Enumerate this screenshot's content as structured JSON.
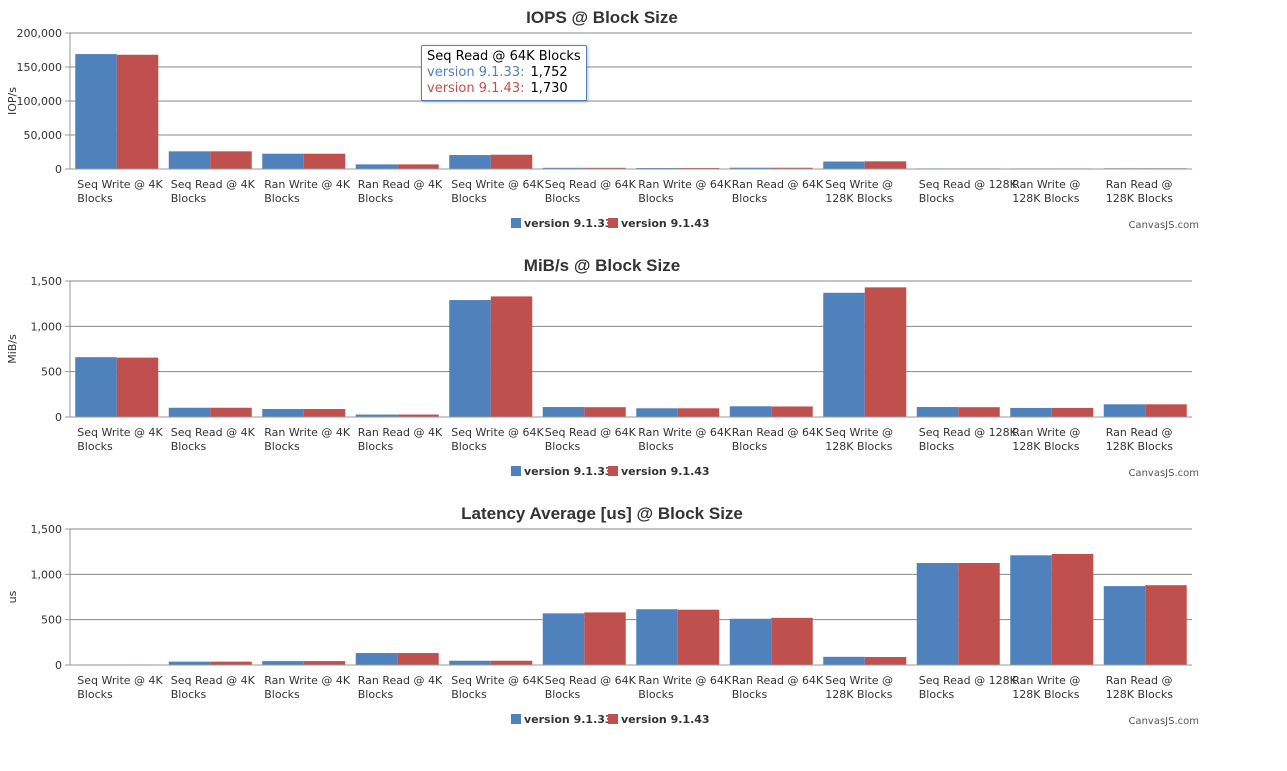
{
  "colors": {
    "series_1": "#4f81bc",
    "series_2": "#c0504d",
    "grid": "#888888",
    "axis": "#999999"
  },
  "watermark": "CanvasJS.com",
  "chart_data": [
    {
      "type": "bar",
      "title": "IOPS @ Block Size",
      "ylabel": "IOP/s",
      "ylim": [
        0,
        200000
      ],
      "yticks": [
        0,
        50000,
        100000,
        150000,
        200000
      ],
      "ytick_labels": [
        "0",
        "50,000",
        "100,000",
        "150,000",
        "200,000"
      ],
      "grid": true,
      "legend_position": "bottom",
      "categories": [
        [
          "Seq Write @ 4K",
          "Blocks"
        ],
        [
          "Seq Read @ 4K",
          "Blocks"
        ],
        [
          "Ran Write @ 4K",
          "Blocks"
        ],
        [
          "Ran Read @ 4K",
          "Blocks"
        ],
        [
          "Seq Write @ 64K",
          "Blocks"
        ],
        [
          "Seq Read @ 64K",
          "Blocks"
        ],
        [
          "Ran Write @ 64K",
          "Blocks"
        ],
        [
          "Ran Read @ 64K",
          "Blocks"
        ],
        [
          "Seq Write @",
          "128K Blocks"
        ],
        [
          "Seq Read @ 128K",
          "Blocks"
        ],
        [
          "Ran Write @",
          "128K Blocks"
        ],
        [
          "Ran Read @",
          "128K Blocks"
        ]
      ],
      "series": [
        {
          "name": "version 9.1.33",
          "values": [
            169000,
            26000,
            22500,
            6800,
            20500,
            1752,
            1500,
            1900,
            11000,
            900,
            850,
            1100
          ]
        },
        {
          "name": "version 9.1.43",
          "values": [
            168000,
            26000,
            22500,
            6800,
            21000,
            1730,
            1500,
            1850,
            11300,
            900,
            850,
            1100
          ]
        }
      ]
    },
    {
      "type": "bar",
      "title": "MiB/s @ Block Size",
      "ylabel": "MiB/s",
      "ylim": [
        0,
        1500
      ],
      "yticks": [
        0,
        500,
        1000,
        1500
      ],
      "ytick_labels": [
        "0",
        "500",
        "1,000",
        "1,500"
      ],
      "grid": true,
      "legend_position": "bottom",
      "categories": [
        [
          "Seq Write @ 4K",
          "Blocks"
        ],
        [
          "Seq Read @ 4K",
          "Blocks"
        ],
        [
          "Ran Write @ 4K",
          "Blocks"
        ],
        [
          "Ran Read @ 4K",
          "Blocks"
        ],
        [
          "Seq Write @ 64K",
          "Blocks"
        ],
        [
          "Seq Read @ 64K",
          "Blocks"
        ],
        [
          "Ran Write @ 64K",
          "Blocks"
        ],
        [
          "Ran Read @ 64K",
          "Blocks"
        ],
        [
          "Seq Write @",
          "128K Blocks"
        ],
        [
          "Seq Read @ 128K",
          "Blocks"
        ],
        [
          "Ran Write @",
          "128K Blocks"
        ],
        [
          "Ran Read @",
          "128K Blocks"
        ]
      ],
      "series": [
        {
          "name": "version 9.1.33",
          "values": [
            660,
            102,
            88,
            27,
            1290,
            110,
            96,
            118,
            1370,
            110,
            100,
            140
          ]
        },
        {
          "name": "version 9.1.43",
          "values": [
            655,
            102,
            88,
            27,
            1330,
            108,
            96,
            116,
            1430,
            108,
            100,
            140
          ]
        }
      ]
    },
    {
      "type": "bar",
      "title": "Latency Average [us] @ Block Size",
      "ylabel": "us",
      "ylim": [
        0,
        1500
      ],
      "yticks": [
        0,
        500,
        1000,
        1500
      ],
      "ytick_labels": [
        "0",
        "500",
        "1,000",
        "1,500"
      ],
      "grid": true,
      "legend_position": "bottom",
      "categories": [
        [
          "Seq Write @ 4K",
          "Blocks"
        ],
        [
          "Seq Read @ 4K",
          "Blocks"
        ],
        [
          "Ran Write @ 4K",
          "Blocks"
        ],
        [
          "Ran Read @ 4K",
          "Blocks"
        ],
        [
          "Seq Write @ 64K",
          "Blocks"
        ],
        [
          "Seq Read @ 64K",
          "Blocks"
        ],
        [
          "Ran Write @ 64K",
          "Blocks"
        ],
        [
          "Ran Read @ 64K",
          "Blocks"
        ],
        [
          "Seq Write @",
          "128K Blocks"
        ],
        [
          "Seq Read @ 128K",
          "Blocks"
        ],
        [
          "Ran Write @",
          "128K Blocks"
        ],
        [
          "Ran Read @",
          "128K Blocks"
        ]
      ],
      "series": [
        {
          "name": "version 9.1.33",
          "values": [
            6,
            37,
            43,
            132,
            47,
            570,
            615,
            510,
            90,
            1125,
            1210,
            870
          ]
        },
        {
          "name": "version 9.1.43",
          "values": [
            6,
            37,
            43,
            132,
            47,
            580,
            610,
            520,
            88,
            1125,
            1225,
            880
          ]
        }
      ]
    }
  ],
  "tooltip": {
    "title": "Seq Read @ 64K Blocks",
    "rows": [
      {
        "name": "version 9.1.33:",
        "value": "1,752"
      },
      {
        "name": "version 9.1.43:",
        "value": "1,730"
      }
    ]
  }
}
